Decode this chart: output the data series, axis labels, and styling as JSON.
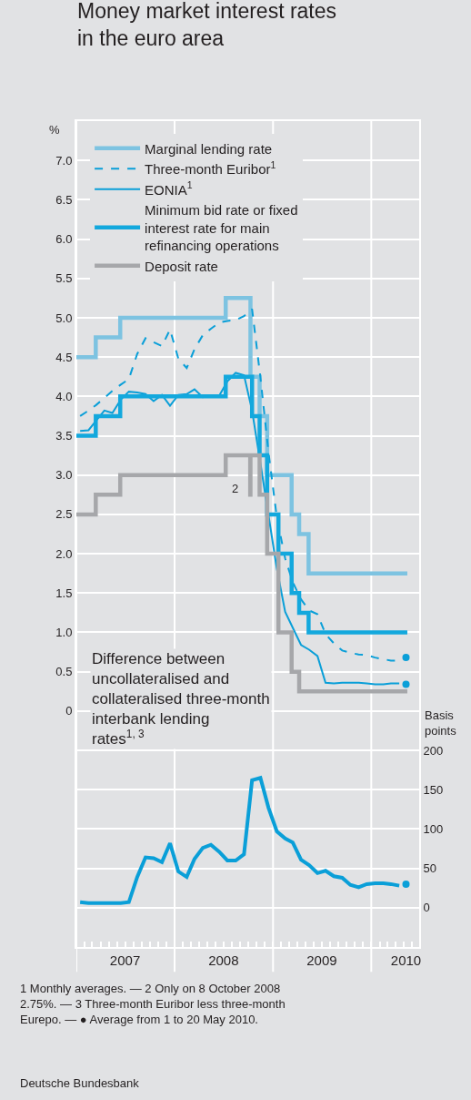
{
  "chart_data": {
    "type": "line",
    "title": "Money market interest rates in the euro area",
    "ylabel": "%",
    "y2label": "Basis points",
    "xlim": [
      "2007-01-01",
      "2010-06-28"
    ],
    "xticks": [
      {
        "value": "2007-01-01",
        "label": null
      },
      {
        "value": "2007-07-01",
        "label": "2007"
      },
      {
        "value": "2008-01-01",
        "label": null
      },
      {
        "value": "2008-07-01",
        "label": "2008"
      },
      {
        "value": "2009-01-01",
        "label": null
      },
      {
        "value": "2009-07-01",
        "label": "2009"
      },
      {
        "value": "2010-01-01",
        "label": null
      },
      {
        "value": "2010-05-10",
        "label": "2010"
      }
    ],
    "ylim": [
      -3.0,
      7.5
    ],
    "yticks": [
      0,
      0.5,
      {
        "value": 1,
        "label": "1.0"
      },
      1.5,
      {
        "value": 2,
        "label": "2.0"
      },
      2.5,
      {
        "value": 3,
        "label": "3.0"
      },
      3.5,
      {
        "value": 4,
        "label": "4.0"
      },
      4.5,
      {
        "value": 5,
        "label": "5.0"
      },
      5.5,
      {
        "value": 6,
        "label": "6.0"
      },
      6.5,
      {
        "value": 7,
        "label": "7.0"
      }
    ],
    "y2lim": [
      -50,
      1000
    ],
    "y2ticks": [
      0,
      50,
      100,
      150,
      200
    ],
    "grid": true,
    "legend": "top left",
    "series": [
      {
        "name": "Marginal lending rate",
        "type": "step",
        "color": "#7dc3e1",
        "x": [
          "2007-01-01",
          "2007-03-14",
          "2007-06-13",
          "2008-07-09",
          "2008-10-09",
          "2008-11-12",
          "2008-12-10",
          "2009-03-11",
          "2009-04-08",
          "2009-05-13",
          "2010-05-15"
        ],
        "values": [
          4.5,
          4.75,
          5.0,
          5.25,
          4.25,
          3.75,
          3.0,
          2.5,
          2.25,
          1.75,
          1.75
        ]
      },
      {
        "name": "Three-month Euribor$^{1}$",
        "line_style": "dashed",
        "color": "#0a9fd8",
        "x": [
          "2007-01-15",
          "2007-02-15",
          "2007-03-15",
          "2007-04-15",
          "2007-05-15",
          "2007-06-15",
          "2007-07-15",
          "2007-08-15",
          "2007-09-15",
          "2007-10-15",
          "2007-11-15",
          "2007-12-15",
          "2008-01-15",
          "2008-02-15",
          "2008-03-15",
          "2008-04-15",
          "2008-05-15",
          "2008-06-15",
          "2008-07-15",
          "2008-08-15",
          "2008-09-15",
          "2008-10-15",
          "2008-11-15",
          "2008-12-15",
          "2009-01-15",
          "2009-02-15",
          "2009-03-15",
          "2009-04-15",
          "2009-05-15",
          "2009-06-15",
          "2009-07-15",
          "2009-08-15",
          "2009-09-15",
          "2009-10-15",
          "2009-11-15",
          "2009-12-15",
          "2010-01-15",
          "2010-02-15",
          "2010-03-15",
          "2010-04-15"
        ],
        "values": [
          3.75,
          3.82,
          3.89,
          3.98,
          4.07,
          4.15,
          4.22,
          4.54,
          4.74,
          4.69,
          4.64,
          4.85,
          4.48,
          4.36,
          4.6,
          4.78,
          4.86,
          4.94,
          4.96,
          4.97,
          5.02,
          5.11,
          4.24,
          3.29,
          2.46,
          1.94,
          1.64,
          1.42,
          1.28,
          1.23,
          0.98,
          0.86,
          0.77,
          0.74,
          0.72,
          0.71,
          0.68,
          0.66,
          0.64,
          0.64
        ]
      },
      {
        "name": "EONIA$^{1}$",
        "color": "#0a9fd8",
        "x": [
          "2007-01-15",
          "2007-02-15",
          "2007-03-15",
          "2007-04-15",
          "2007-05-15",
          "2007-06-15",
          "2007-07-15",
          "2007-08-15",
          "2007-09-15",
          "2007-10-15",
          "2007-11-15",
          "2007-12-15",
          "2008-01-15",
          "2008-02-15",
          "2008-03-15",
          "2008-04-15",
          "2008-05-15",
          "2008-06-15",
          "2008-07-15",
          "2008-08-15",
          "2008-09-15",
          "2008-10-15",
          "2008-11-15",
          "2008-12-15",
          "2009-01-15",
          "2009-02-15",
          "2009-03-15",
          "2009-04-15",
          "2009-05-15",
          "2009-06-15",
          "2009-07-15",
          "2009-08-15",
          "2009-09-15",
          "2009-10-15",
          "2009-11-15",
          "2009-12-15",
          "2010-01-15",
          "2010-02-15",
          "2010-03-15",
          "2010-04-15"
        ],
        "values": [
          3.56,
          3.57,
          3.69,
          3.82,
          3.79,
          3.96,
          4.06,
          4.05,
          4.03,
          3.94,
          4.02,
          3.88,
          4.02,
          4.03,
          4.09,
          3.99,
          4.01,
          4.01,
          4.19,
          4.3,
          4.27,
          3.82,
          3.15,
          2.49,
          1.81,
          1.26,
          1.06,
          0.84,
          0.78,
          0.7,
          0.36,
          0.35,
          0.36,
          0.36,
          0.36,
          0.35,
          0.34,
          0.34,
          0.35,
          0.35
        ]
      },
      {
        "name": "Minimum bid rate or fixed interest rate for main refinancing operations",
        "type": "step",
        "color": "#13a8dd",
        "x": [
          "2007-01-01",
          "2007-03-14",
          "2007-06-13",
          "2008-07-09",
          "2008-10-15",
          "2008-11-12",
          "2008-12-10",
          "2009-01-21",
          "2009-03-11",
          "2009-04-08",
          "2009-05-13",
          "2010-05-15"
        ],
        "values": [
          3.5,
          3.75,
          4.0,
          4.25,
          3.75,
          3.25,
          2.5,
          2.0,
          1.5,
          1.25,
          1.0,
          1.0
        ]
      },
      {
        "name": "Deposit rate",
        "type": "step",
        "color": "#a6a7aa",
        "x": [
          "2007-01-01",
          "2007-03-14",
          "2007-06-13",
          "2008-07-09",
          "2008-10-08",
          "2008-10-09",
          "2008-11-12",
          "2008-12-10",
          "2009-01-21",
          "2009-03-11",
          "2009-04-08",
          "2010-05-15"
        ],
        "values": [
          2.5,
          2.75,
          3.0,
          3.25,
          2.75,
          3.25,
          2.75,
          2.0,
          1.0,
          0.5,
          0.25,
          0.25
        ]
      },
      {
        "axis": "y2",
        "color": "#0a9fd8",
        "x": [
          "2007-01-15",
          "2007-02-15",
          "2007-03-15",
          "2007-04-15",
          "2007-05-15",
          "2007-06-15",
          "2007-07-15",
          "2007-08-15",
          "2007-09-15",
          "2007-10-15",
          "2007-11-15",
          "2007-12-15",
          "2008-01-15",
          "2008-02-15",
          "2008-03-15",
          "2008-04-15",
          "2008-05-15",
          "2008-06-15",
          "2008-07-15",
          "2008-08-15",
          "2008-09-15",
          "2008-10-15",
          "2008-11-15",
          "2008-12-15",
          "2009-01-15",
          "2009-02-15",
          "2009-03-15",
          "2009-04-15",
          "2009-05-15",
          "2009-06-15",
          "2009-07-15",
          "2009-08-15",
          "2009-09-15",
          "2009-10-15",
          "2009-11-15",
          "2009-12-15",
          "2010-01-15",
          "2010-02-15",
          "2010-03-15",
          "2010-04-15"
        ],
        "values": [
          7,
          6,
          6,
          6,
          6,
          6,
          7,
          39,
          64,
          63,
          58,
          82,
          46,
          39,
          62,
          76,
          80,
          71,
          60,
          60,
          68,
          162,
          165,
          127,
          97,
          88,
          83,
          61,
          54,
          44,
          47,
          40,
          38,
          29,
          26,
          30,
          31,
          31,
          30,
          28
        ]
      },
      {
        "type": "scatter",
        "marker": "circle",
        "color": "#0a9fd8",
        "x": [
          "2010-05-10"
        ],
        "values": [
          0.68
        ]
      },
      {
        "type": "scatter",
        "marker": "circle",
        "color": "#0a9fd8",
        "x": [
          "2010-05-10"
        ],
        "values": [
          0.34
        ]
      },
      {
        "type": "scatter",
        "marker": "circle",
        "axis": "y2",
        "color": "#0a9fd8",
        "x": [
          "2010-05-10"
        ],
        "values": [
          30
        ]
      }
    ],
    "annotations": [
      "Difference between uncollateralised and collateralised three-month interbank lending rates$^{1, 3}$",
      "2",
      "1 Monthly averages. — 2 Only on 8 October 2008 2.75%. — 3 Three-month Euribor less three-month Eurepo. — ● Average from 1 to 20 May 2010.",
      "Deutsche Bundesbank"
    ]
  }
}
